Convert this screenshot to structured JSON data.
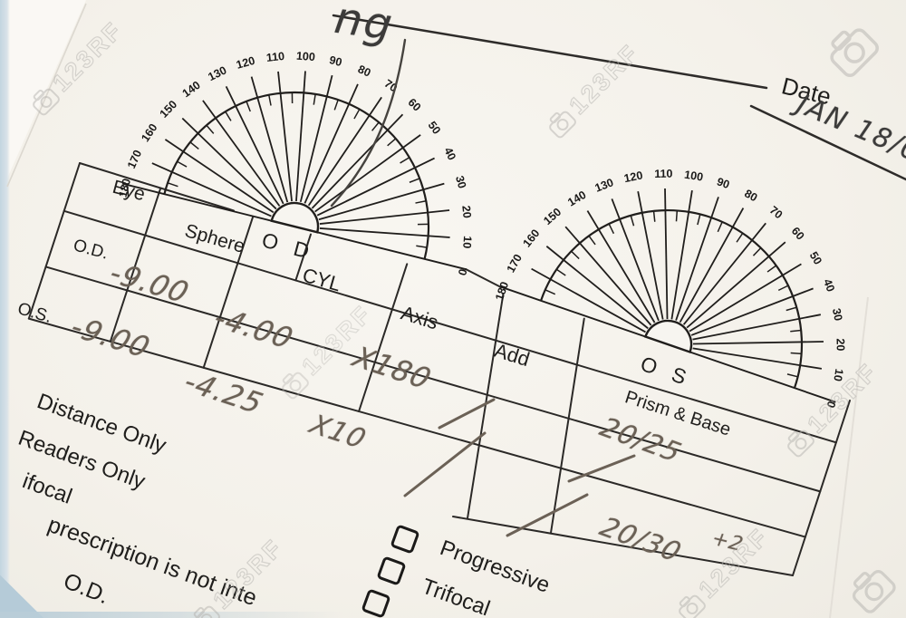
{
  "photo": {
    "header": {
      "handwriting_fragment": "ng",
      "date_label": "Date",
      "date_value": "JAN 18/0"
    },
    "protractor": {
      "od_label": "O D",
      "os_label": "O S",
      "degree_labels": [
        "0",
        "10",
        "20",
        "30",
        "40",
        "50",
        "60",
        "70",
        "80",
        "90",
        "100",
        "110",
        "120",
        "130",
        "140",
        "150",
        "160",
        "170",
        "180"
      ]
    },
    "table": {
      "headers": {
        "eye": "Eye",
        "sphere": "Sphere",
        "cyl": "CYL",
        "axis": "Axis",
        "add": "Add",
        "prism": "Prism & Base"
      },
      "row_od": {
        "label": "O.D.",
        "sphere": "-9.00",
        "cyl": "-4.00",
        "axis": "X180",
        "add": "/",
        "acuity": "20/25"
      },
      "row_os": {
        "label": "O.S.",
        "sphere": "-9.00",
        "cyl": "-4.25",
        "axis": "X10",
        "add": "/",
        "acuity": "20/30",
        "acuity_super": "+2"
      }
    },
    "options": {
      "distance": "Distance Only",
      "readers": "Readers Only",
      "bifocal": "ifocal"
    },
    "footer": {
      "note": "prescription is not inte",
      "eye": "O.D.",
      "checkboxes": [
        "Progressive",
        "Trifocal"
      ]
    },
    "watermark": "123RF"
  }
}
